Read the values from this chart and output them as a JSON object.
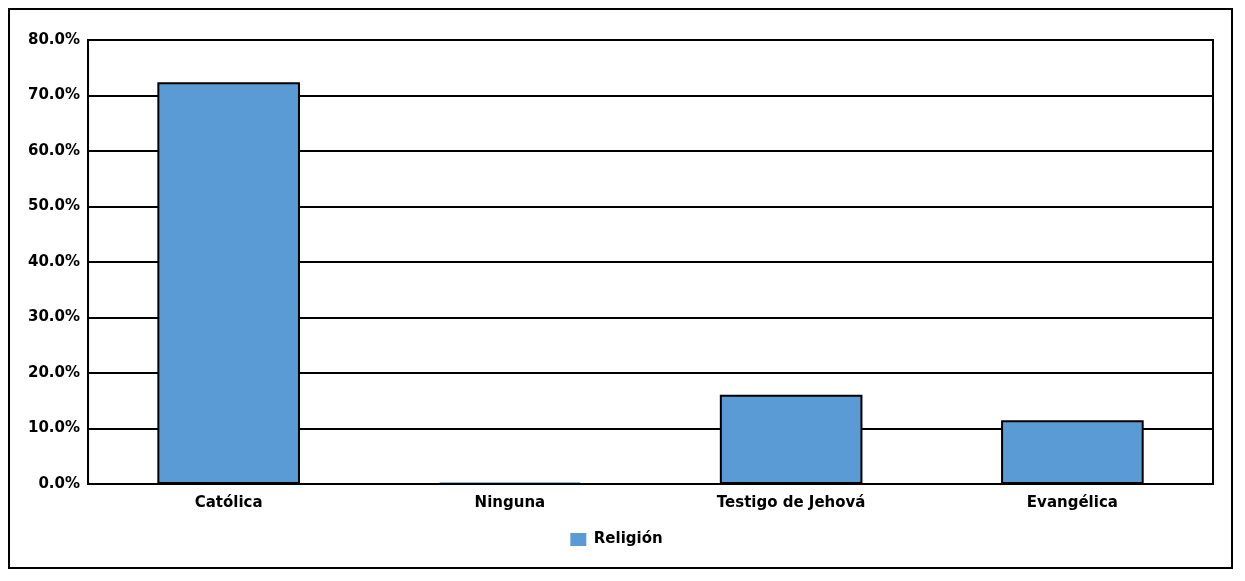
{
  "chart_data": {
    "type": "bar",
    "categories": [
      "Católica",
      "Ninguna",
      "Testigo de Jehová",
      "Evangélica"
    ],
    "series": [
      {
        "name": "Religión",
        "color": "#5b9bd5",
        "values": [
          72.2,
          0.3,
          15.9,
          11.3
        ]
      }
    ],
    "ylim": [
      0,
      80
    ],
    "yticks": [
      {
        "value": 0,
        "label": "0.0%"
      },
      {
        "value": 10,
        "label": "10.0%"
      },
      {
        "value": 20,
        "label": "20.0%"
      },
      {
        "value": 30,
        "label": "30.0%"
      },
      {
        "value": 40,
        "label": "40.0%"
      },
      {
        "value": 50,
        "label": "50.0%"
      },
      {
        "value": 60,
        "label": "60.0%"
      },
      {
        "value": 70,
        "label": "70.0%"
      },
      {
        "value": 80,
        "label": "80.0%"
      }
    ],
    "grid": "y",
    "legend": "bottom"
  }
}
